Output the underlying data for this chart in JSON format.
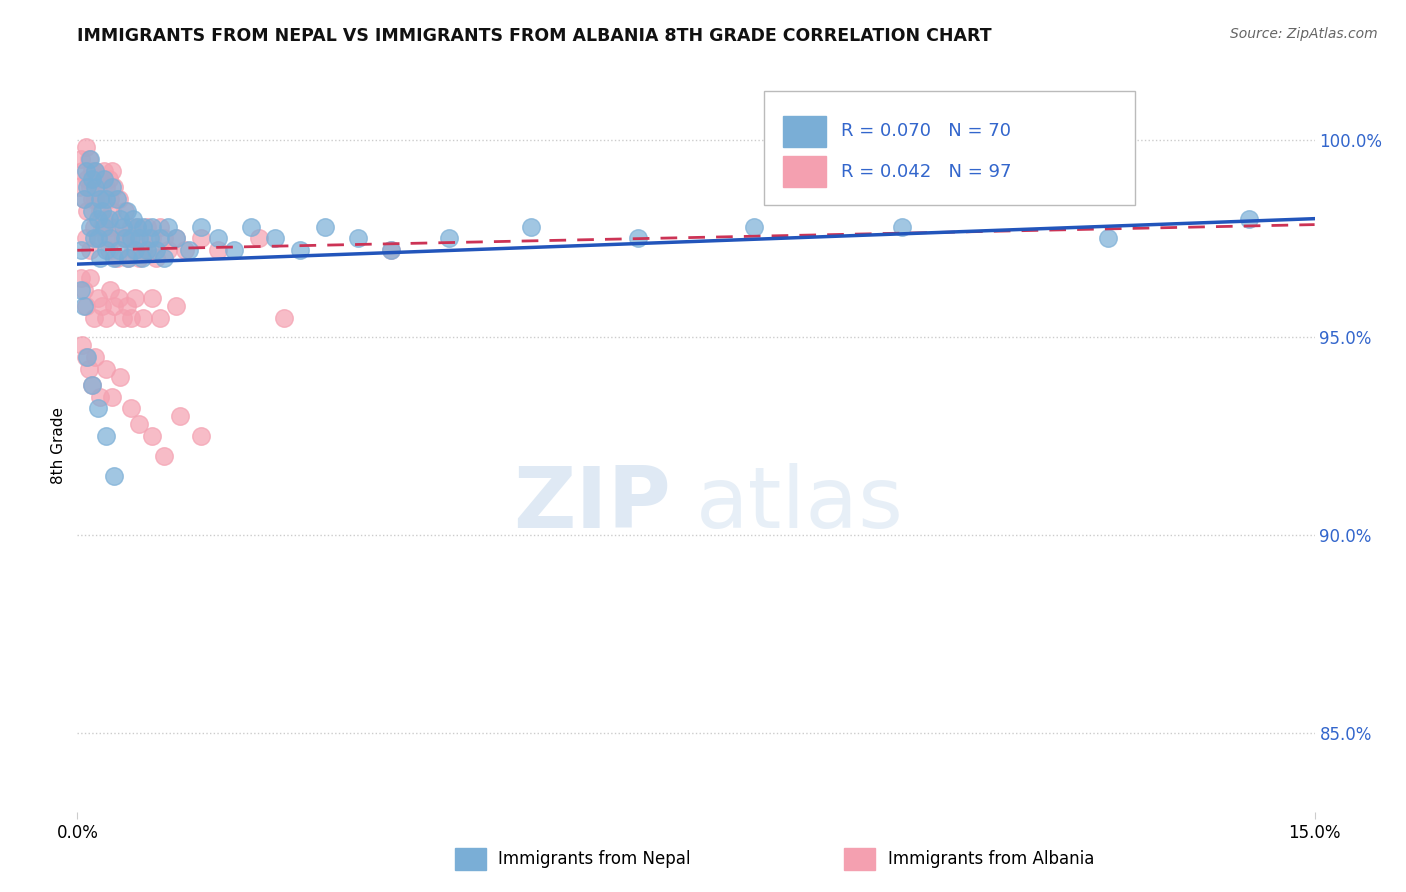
{
  "title": "IMMIGRANTS FROM NEPAL VS IMMIGRANTS FROM ALBANIA 8TH GRADE CORRELATION CHART",
  "source_text": "Source: ZipAtlas.com",
  "ylabel": "8th Grade",
  "xlim": [
    0.0,
    15.0
  ],
  "ylim": [
    83.0,
    101.5
  ],
  "yticks": [
    85.0,
    90.0,
    95.0,
    100.0
  ],
  "ytick_labels": [
    "85.0%",
    "90.0%",
    "95.0%",
    "100.0%"
  ],
  "nepal_color": "#7aaed6",
  "albania_color": "#f4a0b0",
  "nepal_R": 0.07,
  "nepal_N": 70,
  "albania_R": 0.042,
  "albania_N": 97,
  "nepal_line_color": "#2255bb",
  "albania_line_color": "#cc3355",
  "legend_R_color": "#3366cc",
  "nepal_line_y0": 96.85,
  "nepal_line_y1": 98.0,
  "albania_line_y0": 97.2,
  "albania_line_y1": 97.85,
  "nepal_scatter_x": [
    0.05,
    0.08,
    0.1,
    0.12,
    0.15,
    0.15,
    0.18,
    0.18,
    0.2,
    0.22,
    0.22,
    0.25,
    0.25,
    0.28,
    0.28,
    0.3,
    0.32,
    0.32,
    0.35,
    0.35,
    0.38,
    0.4,
    0.42,
    0.45,
    0.48,
    0.5,
    0.52,
    0.55,
    0.58,
    0.6,
    0.62,
    0.65,
    0.68,
    0.7,
    0.72,
    0.75,
    0.78,
    0.8,
    0.85,
    0.88,
    0.9,
    0.95,
    1.0,
    1.05,
    1.1,
    1.2,
    1.35,
    1.5,
    1.7,
    1.9,
    2.1,
    2.4,
    2.7,
    3.0,
    3.4,
    3.8,
    4.5,
    5.5,
    6.8,
    8.2,
    0.05,
    0.08,
    0.12,
    0.18,
    0.25,
    0.35,
    0.45,
    10.0,
    12.5,
    14.2
  ],
  "nepal_scatter_y": [
    97.2,
    98.5,
    99.2,
    98.8,
    99.5,
    97.8,
    98.2,
    99.0,
    97.5,
    98.8,
    99.2,
    98.0,
    97.5,
    98.5,
    97.0,
    98.2,
    97.8,
    99.0,
    98.5,
    97.2,
    98.0,
    97.5,
    98.8,
    97.0,
    98.5,
    97.2,
    98.0,
    97.8,
    97.5,
    98.2,
    97.0,
    97.5,
    98.0,
    97.2,
    97.8,
    97.5,
    97.0,
    97.8,
    97.2,
    97.5,
    97.8,
    97.2,
    97.5,
    97.0,
    97.8,
    97.5,
    97.2,
    97.8,
    97.5,
    97.2,
    97.8,
    97.5,
    97.2,
    97.8,
    97.5,
    97.2,
    97.5,
    97.8,
    97.5,
    97.8,
    96.2,
    95.8,
    94.5,
    93.8,
    93.2,
    92.5,
    91.5,
    97.8,
    97.5,
    98.0
  ],
  "albania_scatter_x": [
    0.02,
    0.04,
    0.06,
    0.08,
    0.1,
    0.1,
    0.12,
    0.12,
    0.14,
    0.15,
    0.15,
    0.18,
    0.18,
    0.2,
    0.2,
    0.22,
    0.22,
    0.25,
    0.25,
    0.28,
    0.28,
    0.3,
    0.3,
    0.32,
    0.32,
    0.35,
    0.35,
    0.38,
    0.38,
    0.4,
    0.4,
    0.42,
    0.42,
    0.45,
    0.45,
    0.48,
    0.5,
    0.52,
    0.55,
    0.58,
    0.6,
    0.62,
    0.65,
    0.68,
    0.7,
    0.72,
    0.75,
    0.78,
    0.8,
    0.85,
    0.88,
    0.9,
    0.95,
    1.0,
    1.05,
    1.1,
    1.2,
    1.3,
    1.5,
    1.7,
    0.05,
    0.08,
    0.1,
    0.15,
    0.2,
    0.25,
    0.3,
    0.35,
    0.4,
    0.45,
    0.5,
    0.55,
    0.6,
    0.65,
    0.7,
    0.8,
    0.9,
    1.0,
    1.2,
    2.2,
    0.06,
    0.1,
    0.14,
    0.18,
    0.22,
    0.28,
    0.35,
    0.42,
    0.52,
    0.65,
    0.75,
    0.9,
    1.05,
    1.25,
    1.5,
    2.5,
    3.8
  ],
  "albania_scatter_y": [
    98.8,
    99.5,
    99.2,
    98.5,
    99.8,
    97.5,
    99.0,
    98.2,
    99.5,
    98.8,
    97.2,
    99.2,
    98.5,
    99.0,
    97.8,
    98.5,
    99.2,
    98.8,
    97.5,
    98.2,
    99.0,
    97.8,
    98.5,
    99.2,
    98.0,
    97.5,
    98.8,
    97.2,
    99.0,
    98.5,
    97.8,
    99.2,
    98.2,
    97.5,
    98.8,
    97.0,
    98.5,
    97.8,
    97.5,
    98.2,
    97.5,
    97.0,
    97.8,
    97.2,
    97.5,
    97.8,
    97.0,
    97.5,
    97.2,
    97.8,
    97.2,
    97.5,
    97.0,
    97.8,
    97.5,
    97.2,
    97.5,
    97.2,
    97.5,
    97.2,
    96.5,
    96.2,
    95.8,
    96.5,
    95.5,
    96.0,
    95.8,
    95.5,
    96.2,
    95.8,
    96.0,
    95.5,
    95.8,
    95.5,
    96.0,
    95.5,
    96.0,
    95.5,
    95.8,
    97.5,
    94.8,
    94.5,
    94.2,
    93.8,
    94.5,
    93.5,
    94.2,
    93.5,
    94.0,
    93.2,
    92.8,
    92.5,
    92.0,
    93.0,
    92.5,
    95.5,
    97.2
  ],
  "watermark_zip": "ZIP",
  "watermark_atlas": "atlas",
  "background_color": "#ffffff",
  "grid_color": "#cccccc",
  "legend_nepal_text": "R = 0.070   N = 70",
  "legend_albania_text": "R = 0.042   N = 97"
}
